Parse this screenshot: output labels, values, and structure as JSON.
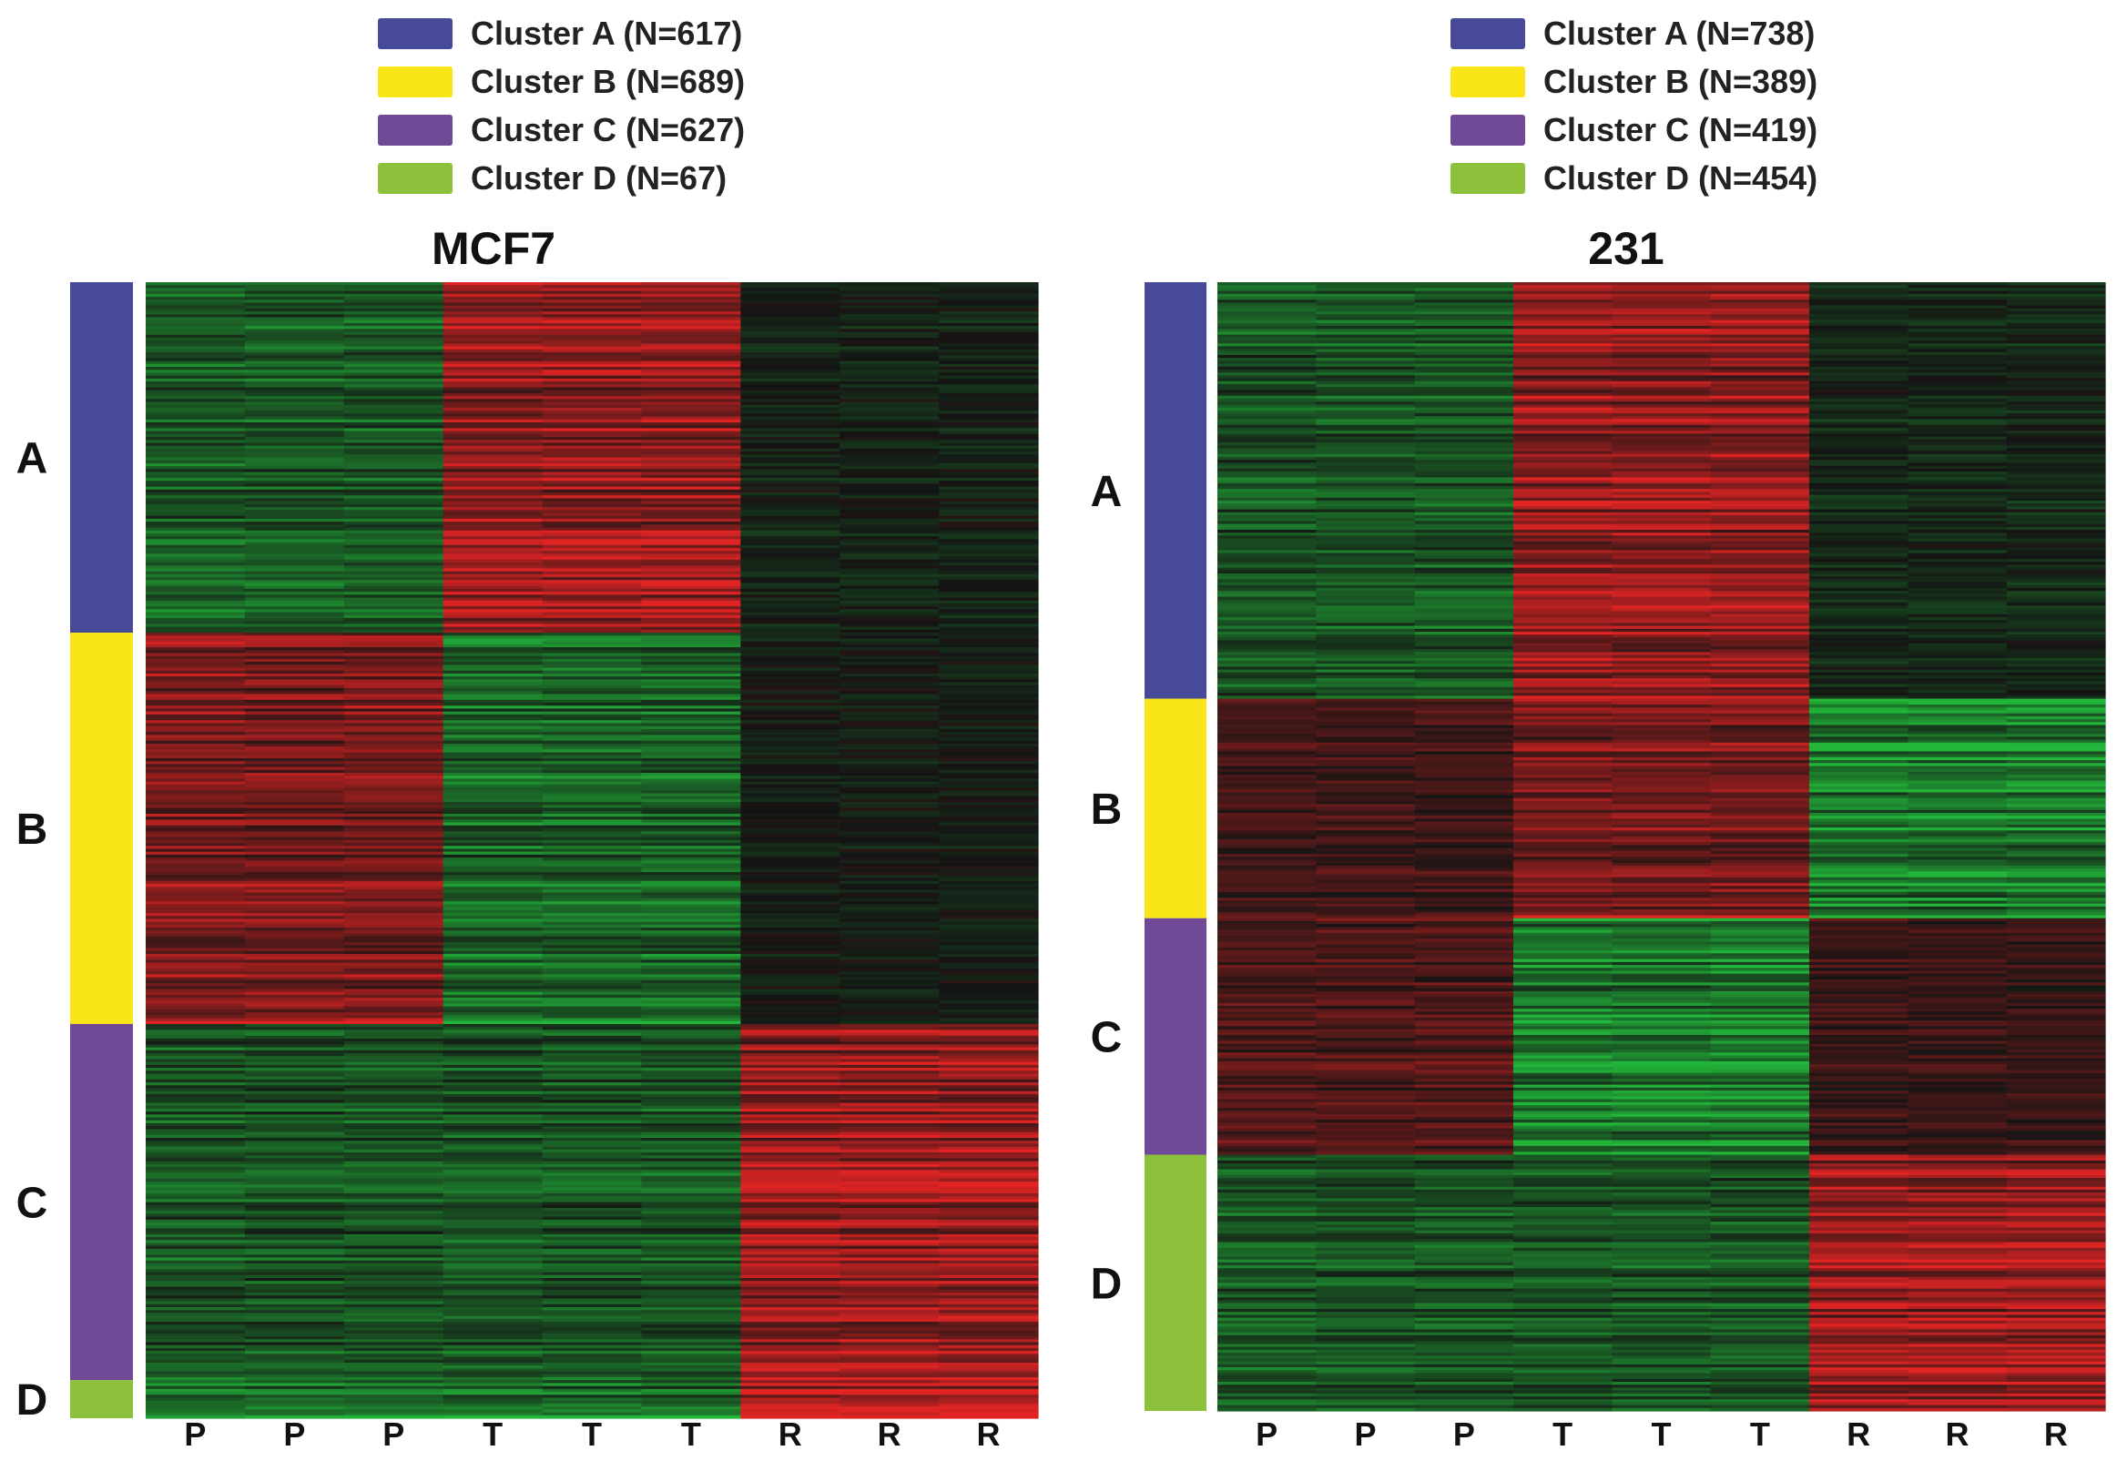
{
  "colors": {
    "cluster_a": "#474a99",
    "cluster_b": "#fae519",
    "cluster_c": "#704997",
    "cluster_d": "#8dc03b",
    "up": "#e02424",
    "down": "#22b63a",
    "neutral": "#141414"
  },
  "chart_data": [
    {
      "type": "heatmap",
      "title": "MCF7",
      "columns": [
        "P",
        "P",
        "P",
        "T",
        "T",
        "T",
        "R",
        "R",
        "R"
      ],
      "legend": [
        {
          "label": "Cluster A (N=617)",
          "cluster": "A",
          "n": 617
        },
        {
          "label": "Cluster B (N=689)",
          "cluster": "B",
          "n": 689
        },
        {
          "label": "Cluster C (N=627)",
          "cluster": "C",
          "n": 627
        },
        {
          "label": "Cluster D (N=67)",
          "cluster": "D",
          "n": 67
        }
      ],
      "clusters": [
        {
          "label": "A",
          "n": 617,
          "pattern": [
            -0.5,
            -0.5,
            -0.5,
            0.75,
            0.75,
            0.75,
            -0.1,
            -0.1,
            -0.1
          ]
        },
        {
          "label": "B",
          "n": 689,
          "pattern": [
            0.6,
            0.6,
            0.6,
            -0.6,
            -0.6,
            -0.6,
            -0.05,
            -0.05,
            -0.05
          ]
        },
        {
          "label": "C",
          "n": 627,
          "pattern": [
            -0.45,
            -0.45,
            -0.45,
            -0.45,
            -0.45,
            -0.45,
            0.75,
            0.75,
            0.75
          ]
        },
        {
          "label": "D",
          "n": 67,
          "pattern": [
            -0.6,
            -0.6,
            -0.6,
            -0.6,
            -0.6,
            -0.6,
            0.95,
            0.95,
            0.95
          ]
        }
      ]
    },
    {
      "type": "heatmap",
      "title": "231",
      "columns": [
        "P",
        "P",
        "P",
        "T",
        "T",
        "T",
        "R",
        "R",
        "R"
      ],
      "legend": [
        {
          "label": "Cluster A (N=738)",
          "cluster": "A",
          "n": 738
        },
        {
          "label": "Cluster B (N=389)",
          "cluster": "B",
          "n": 389
        },
        {
          "label": "Cluster C (N=419)",
          "cluster": "C",
          "n": 419
        },
        {
          "label": "Cluster D (N=454)",
          "cluster": "D",
          "n": 454
        }
      ],
      "clusters": [
        {
          "label": "A",
          "n": 738,
          "pattern": [
            -0.45,
            -0.45,
            -0.45,
            0.7,
            0.7,
            0.7,
            -0.15,
            -0.15,
            -0.15
          ]
        },
        {
          "label": "B",
          "n": 389,
          "pattern": [
            0.25,
            0.25,
            0.25,
            0.55,
            0.55,
            0.55,
            -0.75,
            -0.75,
            -0.75
          ]
        },
        {
          "label": "C",
          "n": 419,
          "pattern": [
            0.35,
            0.35,
            0.35,
            -0.75,
            -0.75,
            -0.75,
            0.2,
            0.2,
            0.2
          ]
        },
        {
          "label": "D",
          "n": 454,
          "pattern": [
            -0.45,
            -0.45,
            -0.45,
            -0.45,
            -0.45,
            -0.45,
            0.75,
            0.75,
            0.75
          ]
        }
      ]
    }
  ]
}
